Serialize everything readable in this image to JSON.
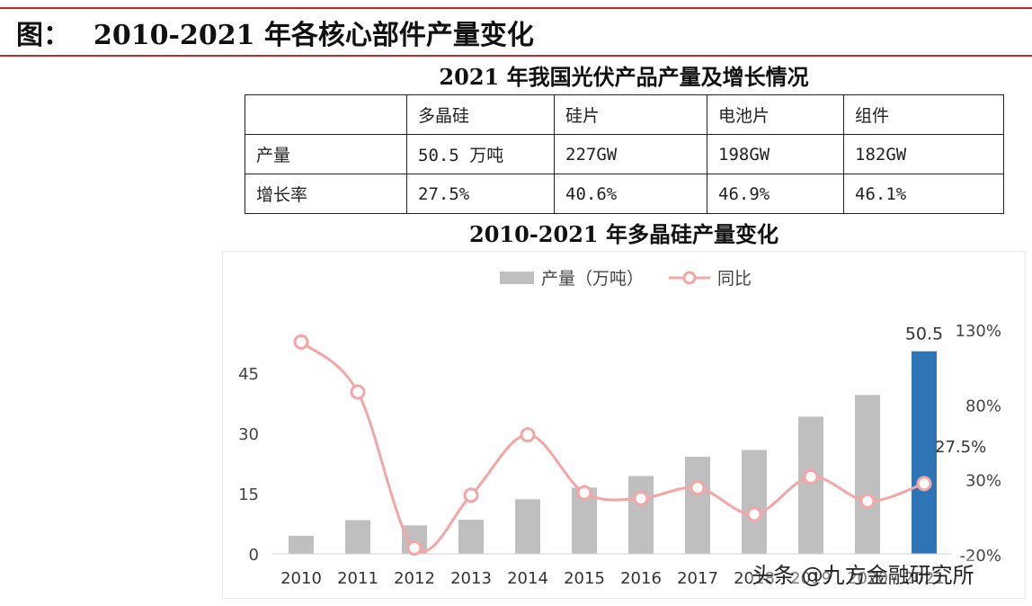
{
  "figure_title_prefix": "图：",
  "figure_title": "2010-2021 年各核心部件产量变化",
  "table": {
    "title": "2021 年我国光伏产品产量及增长情况",
    "header": [
      "",
      "多晶硅",
      "硅片",
      "电池片",
      "组件"
    ],
    "rows": [
      [
        "产量",
        "50.5 万吨",
        "227GW",
        "198GW",
        "182GW"
      ],
      [
        "增长率",
        "27.5%",
        "40.6%",
        "46.9%",
        "46.1%"
      ]
    ]
  },
  "watermark": "头条 @九方金融研究所",
  "colors": {
    "bar": "#bfbfbf",
    "bar_highlight": "#2e75b6",
    "line": "#f4a6a6",
    "marker_fill": "#ffffff",
    "rule": "#c0282d"
  },
  "chart_data": {
    "type": "bar",
    "title": "2010-2021 年多晶硅产量变化",
    "legend": [
      {
        "label": "产量（万吨）",
        "kind": "bar"
      },
      {
        "label": "同比",
        "kind": "line"
      }
    ],
    "legend_position": "top-center",
    "categories": [
      "2010",
      "2011",
      "2012",
      "2013",
      "2014",
      "2015",
      "2016",
      "2017",
      "2018",
      "2019",
      "2020",
      "2021"
    ],
    "series": [
      {
        "name": "产量（万吨）",
        "axis": "left",
        "values": [
          4.5,
          8.4,
          7.1,
          8.5,
          13.6,
          16.5,
          19.4,
          24.2,
          25.9,
          34.2,
          39.6,
          50.5
        ]
      },
      {
        "name": "同比",
        "axis": "right",
        "values": [
          122,
          88.6,
          -15.5,
          19.7,
          60,
          21.3,
          17.6,
          24.7,
          7,
          32,
          15.8,
          27.5
        ]
      }
    ],
    "highlight": {
      "index": 11,
      "bar_label": "50.5",
      "line_label": "27.5%"
    },
    "y_left": {
      "ticks": [
        0,
        15,
        30,
        45
      ],
      "range": [
        0,
        52
      ]
    },
    "y_right": {
      "ticks": [
        -20,
        30,
        80,
        130
      ],
      "tick_labels": [
        "-20%",
        "30%",
        "80%",
        "130%"
      ],
      "range": [
        -20,
        130
      ]
    },
    "grid": false
  }
}
